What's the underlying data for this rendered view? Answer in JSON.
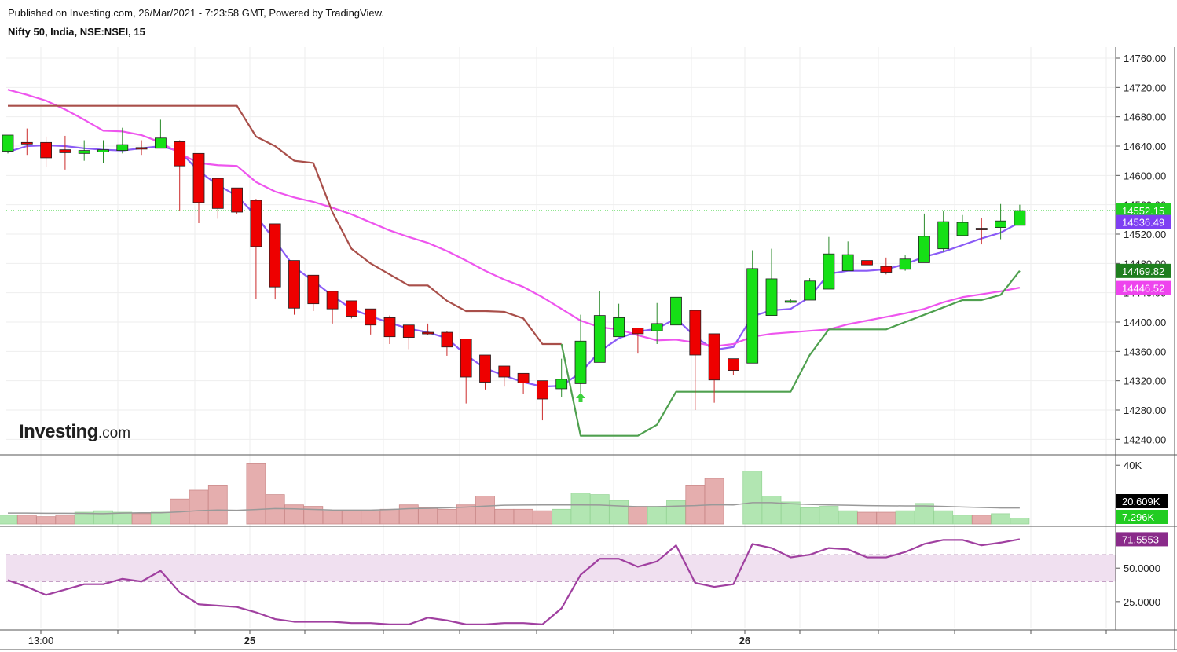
{
  "header": {
    "published": "Published on Investing.com, 26/Mar/2021 - 7:23:58 GMT, Powered by TradingView.",
    "symbol": "Nifty 50, India, NSE:NSEI, 15"
  },
  "logo": {
    "brand": "Investing",
    "suffix": ".com"
  },
  "chart_data": [
    {
      "type": "candlestick",
      "panel": "price",
      "y_ticks": [
        14240,
        14280,
        14320,
        14360,
        14400,
        14440,
        14480,
        14520,
        14560,
        14600,
        14640,
        14680,
        14720,
        14760
      ],
      "y_tick_labels": [
        "14240.00",
        "14280.00",
        "14320.00",
        "14360.00",
        "14400.00",
        "14440.00",
        "14480.00",
        "14520.00",
        "14560.00",
        "14600.00",
        "14640.00",
        "14680.00",
        "14720.00",
        "14760.00"
      ],
      "ylim": [
        14220,
        14775
      ],
      "x_tick_labels": [
        "13:00",
        "25",
        "26"
      ],
      "candles": [
        {
          "o": 14633,
          "h": 14655,
          "l": 14630,
          "c": 14655
        },
        {
          "o": 14645,
          "h": 14664,
          "l": 14628,
          "c": 14643
        },
        {
          "o": 14645,
          "h": 14653,
          "l": 14611,
          "c": 14624
        },
        {
          "o": 14635,
          "h": 14654,
          "l": 14608,
          "c": 14631
        },
        {
          "o": 14630,
          "h": 14648,
          "l": 14620,
          "c": 14634
        },
        {
          "o": 14632,
          "h": 14648,
          "l": 14617,
          "c": 14635
        },
        {
          "o": 14634,
          "h": 14665,
          "l": 14630,
          "c": 14642
        },
        {
          "o": 14638,
          "h": 14648,
          "l": 14628,
          "c": 14636
        },
        {
          "o": 14637,
          "h": 14676,
          "l": 14637,
          "c": 14651
        },
        {
          "o": 14646,
          "h": 14648,
          "l": 14552,
          "c": 14613
        },
        {
          "o": 14630,
          "h": 14630,
          "l": 14535,
          "c": 14563
        },
        {
          "o": 14596,
          "h": 14596,
          "l": 14541,
          "c": 14555
        },
        {
          "o": 14583,
          "h": 14583,
          "l": 14548,
          "c": 14550
        },
        {
          "o": 14566,
          "h": 14568,
          "l": 14432,
          "c": 14503
        },
        {
          "o": 14534,
          "h": 14534,
          "l": 14431,
          "c": 14448
        },
        {
          "o": 14484,
          "h": 14484,
          "l": 14410,
          "c": 14419
        },
        {
          "o": 14464,
          "h": 14464,
          "l": 14415,
          "c": 14425
        },
        {
          "o": 14442,
          "h": 14442,
          "l": 14398,
          "c": 14418
        },
        {
          "o": 14429,
          "h": 14429,
          "l": 14405,
          "c": 14408
        },
        {
          "o": 14418,
          "h": 14418,
          "l": 14383,
          "c": 14396
        },
        {
          "o": 14406,
          "h": 14409,
          "l": 14370,
          "c": 14380
        },
        {
          "o": 14396,
          "h": 14396,
          "l": 14363,
          "c": 14379
        },
        {
          "o": 14386,
          "h": 14398,
          "l": 14382,
          "c": 14384
        },
        {
          "o": 14386,
          "h": 14388,
          "l": 14354,
          "c": 14366
        },
        {
          "o": 14377,
          "h": 14377,
          "l": 14289,
          "c": 14325
        },
        {
          "o": 14355,
          "h": 14355,
          "l": 14308,
          "c": 14318
        },
        {
          "o": 14340,
          "h": 14340,
          "l": 14312,
          "c": 14325
        },
        {
          "o": 14330,
          "h": 14330,
          "l": 14302,
          "c": 14317
        },
        {
          "o": 14320,
          "h": 14320,
          "l": 14266,
          "c": 14295
        },
        {
          "o": 14309,
          "h": 14350,
          "l": 14298,
          "c": 14322
        },
        {
          "o": 14316,
          "h": 14410,
          "l": 14303,
          "c": 14374
        },
        {
          "o": 14345,
          "h": 14442,
          "l": 14345,
          "c": 14409
        },
        {
          "o": 14380,
          "h": 14425,
          "l": 14380,
          "c": 14406
        },
        {
          "o": 14392,
          "h": 14392,
          "l": 14357,
          "c": 14384
        },
        {
          "o": 14388,
          "h": 14426,
          "l": 14370,
          "c": 14398
        },
        {
          "o": 14396,
          "h": 14493,
          "l": 14396,
          "c": 14434
        },
        {
          "o": 14416,
          "h": 14416,
          "l": 14280,
          "c": 14355
        },
        {
          "o": 14384,
          "h": 14384,
          "l": 14290,
          "c": 14321
        },
        {
          "o": 14350,
          "h": 14350,
          "l": 14328,
          "c": 14334
        },
        {
          "o": 14344,
          "h": 14498,
          "l": 14344,
          "c": 14473
        },
        {
          "o": 14409,
          "h": 14500,
          "l": 14409,
          "c": 14459
        },
        {
          "o": 14429,
          "h": 14432,
          "l": 14426,
          "c": 14429
        },
        {
          "o": 14430,
          "h": 14460,
          "l": 14430,
          "c": 14456
        },
        {
          "o": 14445,
          "h": 14516,
          "l": 14445,
          "c": 14493
        },
        {
          "o": 14470,
          "h": 14510,
          "l": 14470,
          "c": 14492
        },
        {
          "o": 14484,
          "h": 14503,
          "l": 14453,
          "c": 14478
        },
        {
          "o": 14476,
          "h": 14488,
          "l": 14465,
          "c": 14468
        },
        {
          "o": 14472,
          "h": 14491,
          "l": 14470,
          "c": 14486
        },
        {
          "o": 14481,
          "h": 14548,
          "l": 14481,
          "c": 14517
        },
        {
          "o": 14500,
          "h": 14551,
          "l": 14496,
          "c": 14537
        },
        {
          "o": 14518,
          "h": 14546,
          "l": 14518,
          "c": 14536
        },
        {
          "o": 14528,
          "h": 14542,
          "l": 14506,
          "c": 14527
        },
        {
          "o": 14529,
          "h": 14561,
          "l": 14513,
          "c": 14538
        },
        {
          "o": 14532,
          "h": 14560,
          "l": 14532,
          "c": 14552
        }
      ],
      "series": [
        {
          "name": "",
          "color": "#8b5cf6",
          "start_index": 0,
          "values": [
            14632,
            14640,
            14641,
            14640,
            14637,
            14635,
            14634,
            14637,
            14640,
            14633,
            14606,
            14587,
            14572,
            14545,
            14511,
            14475,
            14456,
            14436,
            14418,
            14408,
            14399,
            14391,
            14386,
            14378,
            14355,
            14337,
            14327,
            14318,
            14312,
            14313,
            14331,
            14360,
            14378,
            14387,
            14391,
            14405,
            14380,
            14362,
            14366,
            14408,
            14416,
            14418,
            14434,
            14466,
            14470,
            14470,
            14472,
            14479,
            14489,
            14496,
            14505,
            14514,
            14522,
            14536
          ]
        },
        {
          "name": "",
          "color": "#ee55ee",
          "start_index": 0,
          "values": [
            14717,
            14710,
            14702,
            14690,
            14676,
            14661,
            14660,
            14655,
            14645,
            14630,
            14617,
            14614,
            14613,
            14591,
            14578,
            14570,
            14564,
            14556,
            14547,
            14536,
            14525,
            14516,
            14508,
            14497,
            14484,
            14470,
            14458,
            14448,
            14434,
            14418,
            14402,
            14393,
            14390,
            14382,
            14375,
            14376,
            14372,
            14367,
            14370,
            14380,
            14384,
            14386,
            14388,
            14390,
            14397,
            14402,
            14407,
            14412,
            14418,
            14427,
            14434,
            14438,
            14442,
            14447
          ]
        },
        {
          "name": "",
          "color": "#a94f4a",
          "start_index": 0,
          "values": [
            14695,
            14695,
            14695,
            14695,
            14695,
            14695,
            14695,
            14695,
            14695,
            14695,
            14695,
            14695,
            14695,
            14653,
            14640,
            14620,
            14617,
            14550,
            14500,
            14480,
            14465,
            14450,
            14450,
            14429,
            14415,
            14415,
            14414,
            14405,
            14370,
            14370
          ]
        },
        {
          "name": "",
          "color": "#4fa04f",
          "start_index": 29,
          "values": [
            14370,
            14245,
            14245,
            14245,
            14245,
            14260,
            14305,
            14305,
            14305,
            14305,
            14305,
            14305,
            14305,
            14355,
            14390,
            14390,
            14390,
            14390,
            14400,
            14410,
            14420,
            14430,
            14430,
            14437,
            14470
          ]
        }
      ],
      "last_price_line": 14552.15,
      "price_tags": [
        {
          "label": "14552.15",
          "color": "#22cc22"
        },
        {
          "label": "14536.49",
          "color": "#7e3ff2"
        },
        {
          "label": "14469.82",
          "color": "#1e7e1e"
        },
        {
          "label": "14446.52",
          "color": "#ee44ee"
        }
      ],
      "signal_markers": [
        {
          "index": 30,
          "type": "buy-arrow",
          "color": "#3cd23c"
        }
      ]
    },
    {
      "type": "bar",
      "panel": "volume",
      "y_tick_labels": [
        "40K"
      ],
      "ylim": [
        0,
        46000
      ],
      "values": [
        6000,
        6000,
        5000,
        6000,
        8000,
        9000,
        8000,
        7000,
        8000,
        17000,
        23000,
        26000,
        0,
        41000,
        20000,
        13000,
        12000,
        9000,
        9000,
        9000,
        10000,
        13000,
        11000,
        10000,
        13000,
        19000,
        10000,
        10000,
        9000,
        10000,
        21000,
        20000,
        16000,
        12000,
        12000,
        16000,
        26000,
        31000,
        0,
        36000,
        19000,
        15000,
        11000,
        12000,
        9000,
        8000,
        8000,
        9000,
        14000,
        9000,
        6000,
        6000,
        7000,
        4000
      ],
      "bar_directions": [
        "up",
        "down",
        "down",
        "down",
        "up",
        "up",
        "up",
        "down",
        "up",
        "down",
        "down",
        "down",
        "down",
        "down",
        "down",
        "down",
        "down",
        "down",
        "down",
        "down",
        "down",
        "down",
        "down",
        "down",
        "down",
        "down",
        "down",
        "down",
        "down",
        "up",
        "up",
        "up",
        "up",
        "down",
        "up",
        "up",
        "down",
        "down",
        "down",
        "up",
        "up",
        "up",
        "up",
        "up",
        "up",
        "down",
        "down",
        "up",
        "up",
        "up",
        "up",
        "down",
        "up",
        "up"
      ],
      "average": [
        7400,
        7400,
        7300,
        7300,
        7200,
        7000,
        7400,
        7600,
        7600,
        8200,
        9100,
        9500,
        9300,
        9800,
        10500,
        10300,
        9900,
        9500,
        9400,
        9400,
        9800,
        10400,
        10600,
        11000,
        11500,
        12200,
        12800,
        12900,
        13000,
        13000,
        13000,
        12900,
        12300,
        11800,
        11800,
        12200,
        12500,
        13100,
        13000,
        14500,
        14500,
        13800,
        13300,
        13000,
        12800,
        12500,
        12400,
        12300,
        12300,
        12000,
        11600,
        11200,
        10900,
        10900
      ],
      "tags": [
        {
          "label": "20.609K",
          "color": "#000000"
        },
        {
          "label": "7.296K",
          "color": "#22cc22"
        }
      ]
    },
    {
      "type": "line",
      "panel": "rsi",
      "color": "#a040a0",
      "y_tick_labels": [
        "25.0000",
        "50.0000"
      ],
      "ylim": [
        5,
        80
      ],
      "band": [
        40,
        60
      ],
      "values": [
        41,
        36,
        30,
        34,
        38,
        38,
        42,
        40,
        48,
        32,
        23,
        22,
        21,
        17,
        12,
        10,
        10,
        10,
        9,
        9,
        8,
        8,
        13,
        11,
        8,
        8,
        9,
        9,
        8,
        20,
        45,
        57,
        57,
        51,
        55,
        67,
        39,
        36,
        38,
        68,
        65,
        58,
        60,
        65,
        64,
        58,
        58,
        62,
        68,
        71,
        71,
        67,
        69,
        71.5553
      ],
      "tag": {
        "label": "71.5553",
        "color": "#8a2b8a"
      }
    }
  ]
}
